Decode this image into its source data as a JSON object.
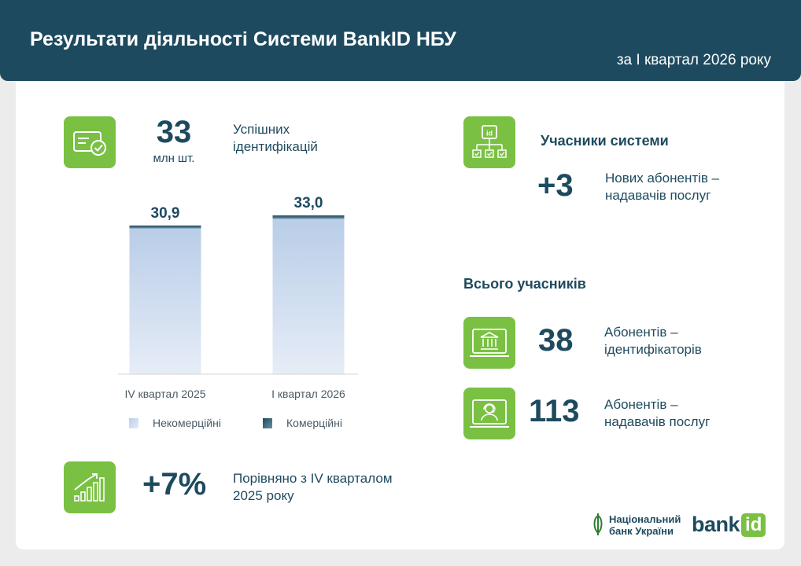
{
  "header": {
    "title": "Результати діяльності Системи BankID НБУ",
    "subtitle": "за І квартал 2026 року"
  },
  "identifications": {
    "value": "33",
    "unit": "млн шт.",
    "label_line1": "Успішних",
    "label_line2": "ідентифікацій"
  },
  "comparison": {
    "value": "+7%",
    "label_line1": "Порівняно з IV кварталом",
    "label_line2": "2025 року"
  },
  "participants": {
    "heading": "Учасники системи",
    "new_value": "+3",
    "new_label_line1": "Нових абонентів –",
    "new_label_line2": "надавачів послуг"
  },
  "total": {
    "heading": "Всього учасників",
    "ident_value": "38",
    "ident_label_line1": "Абонентів –",
    "ident_label_line2": "ідентифікаторів",
    "prov_value": "113",
    "prov_label_line1": "Абонентів –",
    "prov_label_line2": "надавачів послуг"
  },
  "footer": {
    "nbu_line1": "Національний",
    "nbu_line2": "банк України",
    "bankid_text_left": "bank",
    "bankid_text_right": "id"
  },
  "icons": {
    "identifications": "id-card-check-icon",
    "comparison": "growth-bars-icon",
    "participants": "id-network-icon",
    "ident_subscribers": "bank-monitor-icon",
    "provider_subscribers": "support-agent-monitor-icon"
  },
  "colors": {
    "header": "#1e4a5f",
    "accent_green": "#7ac143",
    "text_dark": "#1e4a5f",
    "noncommercial_top": "#b9cde8",
    "noncommercial_bottom": "#e6edf7",
    "commercial_top": "#1e4a5f",
    "commercial_bottom": "#6c8fa3"
  },
  "chart_data": {
    "type": "bar",
    "stacked": true,
    "categories": [
      "IV квартал 2025",
      "І квартал 2026"
    ],
    "series": [
      {
        "name": "Некомерційні",
        "values": [
          30.3,
          32.3
        ]
      },
      {
        "name": "Комерційні",
        "values": [
          0.6,
          0.7
        ]
      }
    ],
    "totals_labels": [
      "30,9",
      "33,0"
    ],
    "totals": [
      30.9,
      33.0
    ],
    "ylim": [
      0,
      33.0
    ],
    "grid": false,
    "legend_position": "bottom"
  }
}
